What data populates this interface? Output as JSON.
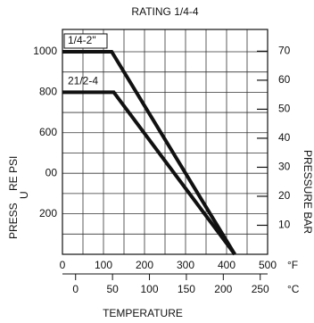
{
  "chart_data": {
    "type": "line",
    "title": "RATING 1/4-4",
    "x_label": "TEMPERATURE",
    "y_label_parts": [
      "PRESS",
      "U",
      "RE PSI"
    ],
    "y2_label": "PRESSURE BAR",
    "x_unit": "°F",
    "x2_unit": "°C",
    "xlim": [
      0,
      500
    ],
    "xticks": [
      0,
      100,
      200,
      300,
      400,
      500
    ],
    "xminor": [
      50,
      150,
      250,
      350,
      450
    ],
    "x2lim": [
      -17.8,
      260
    ],
    "x2ticks": [
      0,
      50,
      100,
      150,
      200,
      250
    ],
    "ylim": [
      0,
      1110
    ],
    "yticks": [
      {
        "value": 200,
        "label": "200"
      },
      {
        "value": 400,
        "label": "00"
      },
      600,
      800,
      1000
    ],
    "yminor": [
      100,
      300,
      500,
      700,
      900
    ],
    "y2lim": [
      0,
      77.5
    ],
    "y2ticks": [
      10,
      20,
      30,
      40,
      50,
      60,
      70
    ],
    "grid": true,
    "series": [
      {
        "name": "1/4-2\"",
        "color": "#111111",
        "x": [
          0,
          120,
          420
        ],
        "values": [
          1000,
          1000,
          0
        ]
      },
      {
        "name": "21/2-4",
        "color": "#111111",
        "x": [
          0,
          125,
          420
        ],
        "values": [
          800,
          800,
          0
        ]
      }
    ]
  }
}
